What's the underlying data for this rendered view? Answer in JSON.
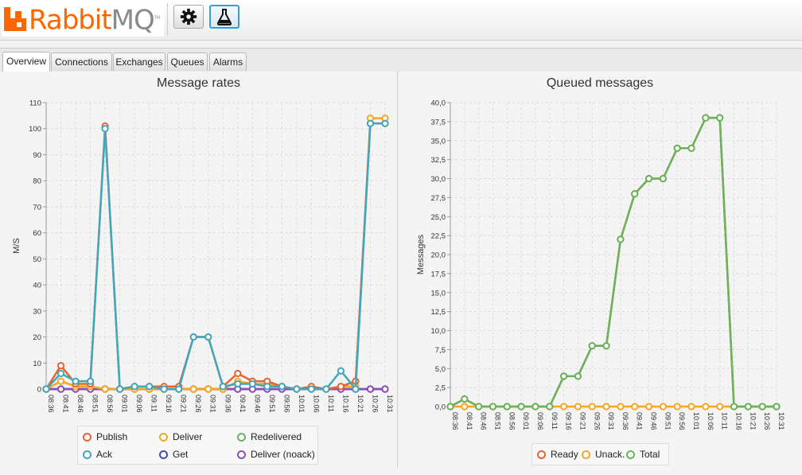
{
  "app": {
    "logo": {
      "brand_rabbit": "Rabbit",
      "brand_mq": "MQ",
      "trademark": "TM"
    }
  },
  "toolbar": {
    "buttons": [
      {
        "name": "settings",
        "icon": "gear-icon",
        "active": false
      },
      {
        "name": "lab",
        "icon": "flask-icon",
        "active": true
      }
    ]
  },
  "tabs": [
    {
      "label": "Overview",
      "active": true
    },
    {
      "label": "Connections",
      "active": false
    },
    {
      "label": "Exchanges",
      "active": false
    },
    {
      "label": "Queues",
      "active": false
    },
    {
      "label": "Alarms",
      "active": false
    }
  ],
  "chart_data": [
    {
      "type": "line",
      "title": "Message rates",
      "xlabel": "",
      "ylabel": "M/S",
      "ylim": [
        0,
        110
      ],
      "yticks": [
        "0",
        "10",
        "20",
        "30",
        "40",
        "50",
        "60",
        "70",
        "80",
        "90",
        "100",
        "110"
      ],
      "grid": true,
      "legend_position": "bottom",
      "x": [
        "08:36",
        "08:41",
        "08:46",
        "08:51",
        "08:56",
        "09:01",
        "09:06",
        "09:11",
        "09:16",
        "09:21",
        "09:26",
        "09:31",
        "09:36",
        "09:41",
        "09:46",
        "09:51",
        "09:56",
        "10:01",
        "10:06",
        "10:11",
        "10:16",
        "10:21",
        "10:26",
        "10:31"
      ],
      "series": [
        {
          "name": "Publish",
          "color": "#e8632e",
          "values": [
            0,
            9,
            2,
            2,
            101,
            0,
            1,
            1,
            1,
            1,
            20,
            20,
            1,
            6,
            3,
            3,
            1,
            0,
            1,
            0,
            1,
            3,
            102,
            102
          ]
        },
        {
          "name": "Deliver",
          "color": "#f5a623",
          "values": [
            0,
            3,
            1,
            1,
            0,
            0,
            0,
            0,
            0,
            0,
            0,
            0,
            0,
            3,
            2,
            2,
            1,
            0,
            0,
            0,
            1,
            1,
            104,
            104
          ]
        },
        {
          "name": "Redelivered",
          "color": "#67b45c",
          "values": [
            0,
            0,
            0,
            0,
            0,
            0,
            0,
            0,
            0,
            0,
            0,
            0,
            0,
            0,
            0,
            0,
            0,
            0,
            0,
            0,
            0,
            0,
            0,
            0
          ]
        },
        {
          "name": "Ack",
          "color": "#41a7bd",
          "values": [
            0,
            6,
            3,
            3,
            100,
            0,
            1,
            1,
            0,
            0,
            20,
            20,
            1,
            2,
            2,
            1,
            1,
            0,
            0,
            0,
            7,
            0,
            102,
            102
          ]
        },
        {
          "name": "Get",
          "color": "#3c4fb5",
          "values": [
            0,
            0,
            0,
            0,
            0,
            0,
            0,
            0,
            0,
            0,
            0,
            0,
            0,
            0,
            0,
            0,
            0,
            0,
            0,
            0,
            0,
            0,
            0,
            0
          ]
        },
        {
          "name": "Deliver (noack)",
          "color": "#8f4fb6",
          "values": [
            0,
            0,
            0,
            0,
            0,
            0,
            0,
            0,
            0,
            0,
            0,
            0,
            0,
            0,
            0,
            0,
            0,
            0,
            0,
            0,
            0,
            0,
            0,
            0
          ]
        }
      ]
    },
    {
      "type": "line",
      "title": "Queued messages",
      "xlabel": "",
      "ylabel": "Messages",
      "ylim": [
        0,
        40
      ],
      "yticks": [
        "0,0",
        "2,5",
        "5,0",
        "7,5",
        "10,0",
        "12,5",
        "15,0",
        "17,5",
        "20,0",
        "22,5",
        "25,0",
        "27,5",
        "30,0",
        "32,5",
        "35,0",
        "37,5",
        "40,0"
      ],
      "grid": true,
      "legend_position": "bottom",
      "x": [
        "08:36",
        "08:41",
        "08:46",
        "08:51",
        "08:56",
        "09:01",
        "09:06",
        "09:11",
        "09:16",
        "09:21",
        "09:26",
        "09:31",
        "09:36",
        "09:41",
        "09:46",
        "09:51",
        "09:56",
        "10:01",
        "10:06",
        "10:11",
        "10:16",
        "10:21",
        "10:26",
        "10:31"
      ],
      "series": [
        {
          "name": "Ready",
          "color": "#e8632e",
          "values": [
            0,
            1,
            0,
            0,
            0,
            0,
            0,
            0,
            4,
            4,
            8,
            8,
            22,
            28,
            30,
            30,
            34,
            34,
            38,
            38,
            0,
            0,
            0,
            0
          ]
        },
        {
          "name": "Unack.",
          "color": "#f5a623",
          "values": [
            0,
            0,
            0,
            0,
            0,
            0,
            0,
            0,
            0,
            0,
            0,
            0,
            0,
            0,
            0,
            0,
            0,
            0,
            0,
            0,
            0,
            0,
            0,
            0
          ]
        },
        {
          "name": "Total",
          "color": "#67b45c",
          "values": [
            0,
            1,
            0,
            0,
            0,
            0,
            0,
            0,
            4,
            4,
            8,
            8,
            22,
            28,
            30,
            30,
            34,
            34,
            38,
            38,
            0,
            0,
            0,
            0
          ]
        }
      ]
    }
  ]
}
